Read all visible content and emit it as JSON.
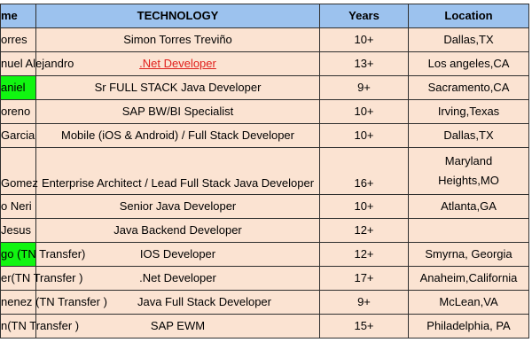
{
  "table": {
    "headers": {
      "name": "me",
      "technology": "TECHNOLOGY",
      "years": "Years",
      "location": "Location"
    },
    "rows": [
      {
        "name": "orres",
        "technology": "Simon Torres Treviño",
        "years": "10+",
        "location": "Dallas,TX"
      },
      {
        "name": "nuel Alejandro",
        "technology": ".Net Developer",
        "years": "13+",
        "location": "Los angeles,CA"
      },
      {
        "name": "aniel",
        "technology": "Sr FULL STACK Java Developer",
        "years": "9+",
        "location": "Sacramento,CA"
      },
      {
        "name": "oreno",
        "technology": "SAP BW/BI Specialist",
        "years": "10+",
        "location": "Irving,Texas"
      },
      {
        "name": "Garcia",
        "technology": "Mobile (iOS & Android) / Full Stack Developer",
        "years": "10+",
        "location": "Dallas,TX"
      },
      {
        "name": "Gomez",
        "technology": "Enterprise Architect / Lead Full Stack Java Developer",
        "years": "16+",
        "location_line1": "Maryland",
        "location_line2": "Heights,MO"
      },
      {
        "name": "o Neri",
        "technology": "Senior Java Developer",
        "years": "10+",
        "location": "Atlanta,GA"
      },
      {
        "name": "Jesus",
        "technology": "Java Backend Developer",
        "years": "12+",
        "location": ""
      },
      {
        "name": "go (TN Transfer)",
        "technology": "IOS Developer",
        "years": "12+",
        "location": "Smyrna, Georgia"
      },
      {
        "name": "er(TN Transfer )",
        "technology": ".Net Developer",
        "years": "17+",
        "location": "Anaheim,California"
      },
      {
        "name": "nenez (TN Transfer )",
        "technology": "Java Full Stack Developer",
        "years": "9+",
        "location": "McLean,VA"
      },
      {
        "name": "n(TN Transfer )",
        "technology": "SAP EWM",
        "years": "15+",
        "location": "Philadelphia, PA"
      }
    ]
  },
  "colors": {
    "header_bg": "#9cc2ee",
    "cell_bg": "#fbe3d2",
    "highlight_green": "#11f511",
    "link_red": "#e0201c"
  }
}
